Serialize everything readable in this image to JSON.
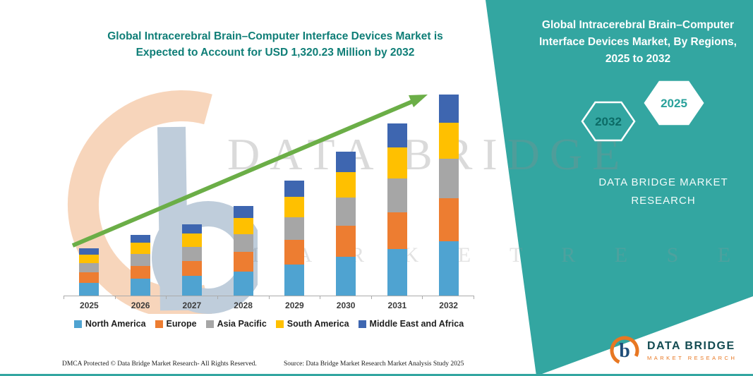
{
  "chart": {
    "title_line1": "Global Intracerebral Brain–Computer Interface Devices Market is",
    "title_line2": "Expected to Account for USD 1,320.23 Million by 2032"
  },
  "chart_data": {
    "type": "stacked_bar",
    "title": "Global Intracerebral Brain–Computer Interface Devices Market is Expected to Account for USD 1,320.23 Million by 2032",
    "unit": "USD Million",
    "categories": [
      "2025",
      "2026",
      "2027",
      "2028",
      "2029",
      "2030",
      "2031",
      "2032"
    ],
    "series": [
      {
        "name": "North America",
        "color": "#4FA3D1",
        "values": [
          85,
          110,
          128,
          160,
          205,
          255,
          305,
          356
        ]
      },
      {
        "name": "Europe",
        "color": "#ED7D31",
        "values": [
          67,
          86,
          101,
          127,
          162,
          203,
          243,
          284
        ]
      },
      {
        "name": "Asia Pacific",
        "color": "#A6A6A6",
        "values": [
          60,
          78,
          92,
          115,
          147,
          184,
          220,
          257
        ]
      },
      {
        "name": "South America",
        "color": "#FFC000",
        "values": [
          56,
          72,
          85,
          106,
          136,
          170,
          203,
          238
        ]
      },
      {
        "name": "Middle East and Africa",
        "color": "#3E66B0",
        "values": [
          42,
          54,
          64,
          82,
          105,
          133,
          159,
          185
        ]
      }
    ],
    "totals_by_year": [
      310,
      400,
      470,
      590,
      755,
      945,
      1130,
      1320
    ],
    "xlabel": "",
    "ylabel": "",
    "ylim": [
      0,
      1400
    ],
    "grid": false,
    "y_axis_visible": false,
    "legend_position": "bottom",
    "trend_arrow": true,
    "trend_arrow_color": "#6BAE47"
  },
  "side_panel": {
    "heading": "Global Intracerebral Brain–Computer Interface Devices Market, By Regions, 2025 to 2032",
    "hexagon_left": "2032",
    "hexagon_right": "2025",
    "brand_line1": "DATA BRIDGE MARKET",
    "brand_line2": "RESEARCH"
  },
  "watermark": {
    "line1": "DATA BRIDGE",
    "line2": "M A R K E T   R E S E A R C H"
  },
  "footer": {
    "dmca": "DMCA Protected © Data Bridge Market Research-  All Rights Reserved.",
    "source": "Source: Data Bridge Market Research  Market Analysis Study 2025"
  },
  "logo": {
    "title": "DATA BRIDGE",
    "subtitle": "MARKET RESEARCH"
  },
  "colors": {
    "accent_teal": "#33A6A1",
    "title_teal": "#0F7E77",
    "arrow_green": "#6BAE47",
    "logo_orange": "#E87722",
    "logo_navy": "#1F4E79"
  }
}
